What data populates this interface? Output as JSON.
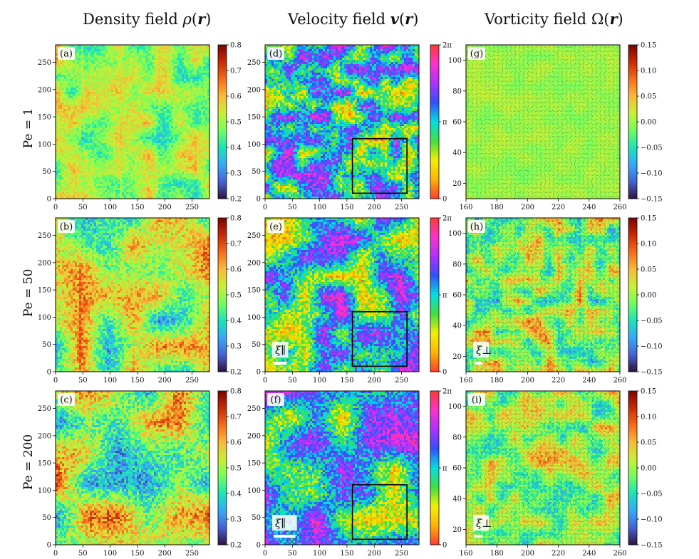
{
  "column_titles": [
    {
      "prefix": "Density field ",
      "sym": "ρ",
      "arg": "r"
    },
    {
      "prefix": "Velocity field ",
      "sym": "v",
      "arg": "r"
    },
    {
      "prefix": "Vorticity field ",
      "sym": "Ω",
      "arg": "r"
    }
  ],
  "row_labels": [
    "Pe = 1",
    "Pe = 50",
    "Pe = 200"
  ],
  "colors": {
    "jet": [
      "#30123b",
      "#4662d7",
      "#36aaf9",
      "#1ae4b6",
      "#72fe5e",
      "#c8ef34",
      "#faba39",
      "#f66b19",
      "#ca2a04",
      "#7a0403"
    ],
    "hue": [
      "#ff3b30",
      "#ffb300",
      "#f0f000",
      "#40e040",
      "#00e0e0",
      "#3050ff",
      "#b030ff",
      "#ff30d0",
      "#ff3b30"
    ],
    "box": "#000000"
  },
  "chart_data": [
    {
      "type": "heatmap",
      "field": "density",
      "panel_label": "(a)",
      "x_ticks": [
        0,
        50,
        100,
        150,
        200,
        250
      ],
      "y_ticks": [
        0,
        50,
        100,
        150,
        200,
        250
      ],
      "xlim": [
        0,
        282
      ],
      "ylim": [
        0,
        282
      ],
      "colorbar": {
        "ticks": [
          0.2,
          0.3,
          0.4,
          0.5,
          0.6,
          0.7,
          0.8
        ],
        "tick_labels": [
          "0.2",
          "0.3",
          "0.4",
          "0.5",
          "0.6",
          "0.7",
          "0.8"
        ],
        "range": [
          0.2,
          0.8
        ]
      },
      "mean": 0.5,
      "spread": 0.08,
      "grain": 8,
      "seed": 11
    },
    {
      "type": "heatmap",
      "field": "velocity_angle",
      "panel_label": "(d)",
      "x_ticks": [
        0,
        50,
        100,
        150,
        200,
        250
      ],
      "y_ticks": [
        0,
        50,
        100,
        150,
        200,
        250
      ],
      "xlim": [
        0,
        282
      ],
      "ylim": [
        0,
        282
      ],
      "colorbar": {
        "ticks": [
          0,
          3.14159,
          6.28318
        ],
        "tick_labels": [
          "0",
          "π",
          "2π"
        ],
        "range": [
          0,
          6.28318
        ]
      },
      "grain": 6,
      "seed": 21,
      "zoom_box": {
        "x": [
          160,
          260
        ],
        "y": [
          10,
          110
        ]
      }
    },
    {
      "type": "heatmap",
      "field": "vorticity",
      "panel_label": "(g)",
      "x_ticks": [
        160,
        180,
        200,
        220,
        240,
        260
      ],
      "y_ticks": [
        20,
        40,
        60,
        80,
        100
      ],
      "xlim": [
        160,
        260
      ],
      "ylim": [
        10,
        110
      ],
      "colorbar": {
        "ticks": [
          -0.15,
          -0.1,
          -0.05,
          0,
          0.05,
          0.1,
          0.15
        ],
        "tick_labels": [
          "−0.15",
          "−0.10",
          "−0.05",
          "0.00",
          "0.05",
          "0.10",
          "0.15"
        ],
        "range": [
          -0.15,
          0.15
        ]
      },
      "mean": 0,
      "spread": 0.01,
      "grain": 5,
      "seed": 31,
      "arrows": true
    },
    {
      "type": "heatmap",
      "field": "density",
      "panel_label": "(b)",
      "x_ticks": [
        0,
        50,
        100,
        150,
        200,
        250
      ],
      "y_ticks": [
        0,
        50,
        100,
        150,
        200,
        250
      ],
      "xlim": [
        0,
        282
      ],
      "ylim": [
        0,
        282
      ],
      "colorbar": {
        "ticks": [
          0.2,
          0.3,
          0.4,
          0.5,
          0.6,
          0.7,
          0.8
        ],
        "tick_labels": [
          "0.2",
          "0.3",
          "0.4",
          "0.5",
          "0.6",
          "0.7",
          "0.8"
        ],
        "range": [
          0.2,
          0.8
        ]
      },
      "mean": 0.5,
      "spread": 0.12,
      "grain": 14,
      "seed": 12
    },
    {
      "type": "heatmap",
      "field": "velocity_angle",
      "panel_label": "(e)",
      "x_ticks": [
        0,
        50,
        100,
        150,
        200,
        250
      ],
      "y_ticks": [
        0,
        50,
        100,
        150,
        200,
        250
      ],
      "xlim": [
        0,
        282
      ],
      "ylim": [
        0,
        282
      ],
      "colorbar": {
        "ticks": [
          0,
          3.14159,
          6.28318
        ],
        "tick_labels": [
          "0",
          "π",
          "2π"
        ],
        "range": [
          0,
          6.28318
        ]
      },
      "grain": 10,
      "seed": 22,
      "zoom_box": {
        "x": [
          160,
          260
        ],
        "y": [
          10,
          110
        ]
      },
      "scale_bar": {
        "label": "ξ∥",
        "length": 24
      }
    },
    {
      "type": "heatmap",
      "field": "vorticity",
      "panel_label": "(h)",
      "x_ticks": [
        160,
        180,
        200,
        220,
        240,
        260
      ],
      "y_ticks": [
        20,
        40,
        60,
        80,
        100
      ],
      "xlim": [
        160,
        260
      ],
      "ylim": [
        10,
        110
      ],
      "colorbar": {
        "ticks": [
          -0.15,
          -0.1,
          -0.05,
          0,
          0.05,
          0.1,
          0.15
        ],
        "tick_labels": [
          "−0.15",
          "−0.10",
          "−0.05",
          "0.00",
          "0.05",
          "0.10",
          "0.15"
        ],
        "range": [
          -0.15,
          0.15
        ]
      },
      "mean": 0,
      "spread": 0.05,
      "grain": 5,
      "seed": 32,
      "arrows": true,
      "scale_bar": {
        "label": "ξ⊥",
        "length": 5
      }
    },
    {
      "type": "heatmap",
      "field": "density",
      "panel_label": "(c)",
      "x_ticks": [
        0,
        50,
        100,
        150,
        200,
        250
      ],
      "y_ticks": [
        0,
        50,
        100,
        150,
        200,
        250
      ],
      "xlim": [
        0,
        282
      ],
      "ylim": [
        0,
        282
      ],
      "colorbar": {
        "ticks": [
          0.2,
          0.3,
          0.4,
          0.5,
          0.6,
          0.7,
          0.8
        ],
        "tick_labels": [
          "0.2",
          "0.3",
          "0.4",
          "0.5",
          "0.6",
          "0.7",
          "0.8"
        ],
        "range": [
          0.2,
          0.8
        ]
      },
      "mean": 0.5,
      "spread": 0.14,
      "grain": 20,
      "seed": 13
    },
    {
      "type": "heatmap",
      "field": "velocity_angle",
      "panel_label": "(f)",
      "x_ticks": [
        0,
        50,
        100,
        150,
        200,
        250
      ],
      "y_ticks": [
        0,
        50,
        100,
        150,
        200,
        250
      ],
      "xlim": [
        0,
        282
      ],
      "ylim": [
        0,
        282
      ],
      "colorbar": {
        "ticks": [
          0,
          3.14159,
          6.28318
        ],
        "tick_labels": [
          "0",
          "π",
          "2π"
        ],
        "range": [
          0,
          6.28318
        ]
      },
      "grain": 14,
      "seed": 23,
      "zoom_box": {
        "x": [
          160,
          260
        ],
        "y": [
          10,
          110
        ]
      },
      "scale_bar": {
        "label": "ξ∥",
        "length": 40
      }
    },
    {
      "type": "heatmap",
      "field": "vorticity",
      "panel_label": "(i)",
      "x_ticks": [
        160,
        180,
        200,
        220,
        240,
        260
      ],
      "y_ticks": [
        20,
        40,
        60,
        80,
        100
      ],
      "xlim": [
        160,
        260
      ],
      "ylim": [
        10,
        110
      ],
      "colorbar": {
        "ticks": [
          -0.15,
          -0.1,
          -0.05,
          0,
          0.05,
          0.1,
          0.15
        ],
        "tick_labels": [
          "−0.15",
          "−0.10",
          "−0.05",
          "0.00",
          "0.05",
          "0.10",
          "0.15"
        ],
        "range": [
          -0.15,
          0.15
        ]
      },
      "mean": 0,
      "spread": 0.045,
      "grain": 6,
      "seed": 33,
      "arrows": true,
      "scale_bar": {
        "label": "ξ⊥",
        "length": 5
      }
    }
  ]
}
